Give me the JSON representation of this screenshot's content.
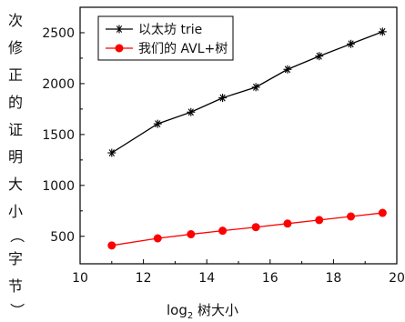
{
  "chart_data": {
    "type": "line",
    "title": "",
    "xlabel": {
      "base": "log",
      "sub": "2",
      "rest": " 树大小"
    },
    "ylabel_chars": [
      "次",
      "修",
      "正",
      "的",
      "证",
      "明",
      "大",
      "小",
      "（",
      "字",
      "节",
      "）"
    ],
    "xlim": [
      10,
      20
    ],
    "ylim": [
      230,
      2750
    ],
    "x_ticks": [
      10,
      12,
      14,
      16,
      18,
      20
    ],
    "y_ticks": [
      500,
      1000,
      1500,
      2000,
      2500
    ],
    "grid": false,
    "legend_position": "top-left",
    "series": [
      {
        "name": "以太坊 trie",
        "color": "#000000",
        "marker": "asterisk",
        "x": [
          11,
          12.45,
          13.5,
          14.5,
          15.55,
          16.55,
          17.55,
          18.55,
          19.55
        ],
        "y": [
          1320,
          1605,
          1720,
          1860,
          1965,
          2140,
          2270,
          2390,
          2510
        ]
      },
      {
        "name": "我们的 AVL+树",
        "color": "#ff0000",
        "marker": "circle",
        "x": [
          11,
          12.45,
          13.5,
          14.5,
          15.55,
          16.55,
          17.55,
          18.55,
          19.55
        ],
        "y": [
          410,
          480,
          520,
          555,
          590,
          625,
          660,
          695,
          730
        ]
      }
    ]
  }
}
